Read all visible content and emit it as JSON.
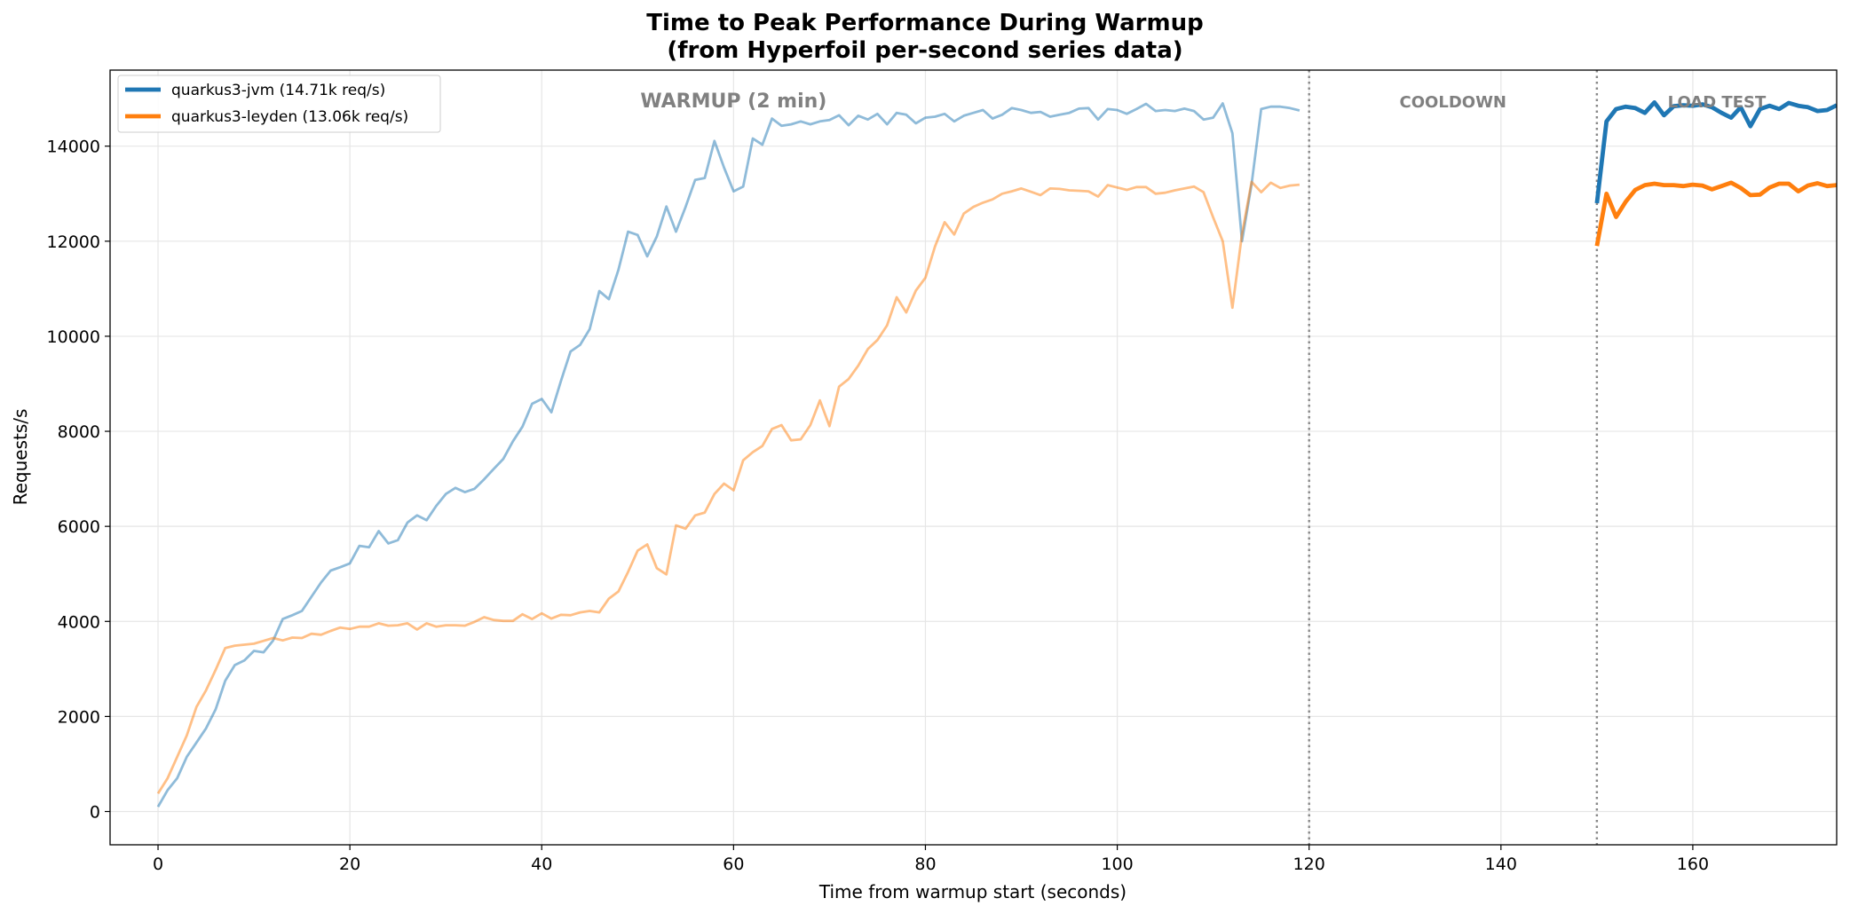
{
  "chart_data": {
    "type": "line",
    "title": "Time to Peak Performance During Warmup",
    "subtitle": "(from Hyperfoil per-second series data)",
    "xlabel": "Time from warmup start (seconds)",
    "ylabel": "Requests/s",
    "xlim": [
      -5,
      175
    ],
    "ylim": [
      -700,
      15600
    ],
    "xticks": [
      0,
      20,
      40,
      60,
      80,
      100,
      120,
      140,
      160
    ],
    "yticks": [
      0,
      2000,
      4000,
      6000,
      8000,
      10000,
      12000,
      14000
    ],
    "grid": true,
    "legend_position": "top-left",
    "phase_lines": [
      120,
      150
    ],
    "phase_labels": [
      {
        "text": "WARMUP (2 min)",
        "x": 60,
        "y": 14950,
        "size": "large"
      },
      {
        "text": "COOLDOWN",
        "x": 135,
        "y": 14950,
        "size": "small"
      },
      {
        "text": "LOAD TEST",
        "x": 162.5,
        "y": 14950,
        "size": "small"
      }
    ],
    "series": [
      {
        "name": "quarkus3-jvm (14.71k req/s)",
        "color": "#1f77b4",
        "warmup": {
          "x": [
            0,
            1,
            2,
            3,
            4,
            5,
            6,
            7,
            8,
            9,
            10,
            11,
            12,
            13,
            14,
            15,
            16,
            17,
            18,
            19,
            20,
            21,
            22,
            23,
            24,
            25,
            26,
            27,
            28,
            29,
            30,
            31,
            32,
            33,
            34,
            35,
            36,
            37,
            38,
            39,
            40,
            41,
            42,
            43,
            44,
            45,
            46,
            47,
            48,
            49,
            50,
            51,
            52,
            53,
            54,
            55,
            56,
            57,
            58,
            59,
            60,
            61,
            62,
            63,
            64,
            65,
            66,
            67,
            68,
            69,
            70,
            71,
            72,
            73,
            74,
            75,
            76,
            77,
            78,
            79,
            80,
            81,
            82,
            83,
            84,
            85,
            86,
            87,
            88,
            89,
            90,
            91,
            92,
            93,
            94,
            95,
            96,
            97,
            98,
            99,
            100,
            101,
            102,
            103,
            104,
            105,
            106,
            107,
            108,
            109,
            110,
            111,
            112,
            113,
            114,
            115,
            116,
            117,
            118,
            119
          ],
          "y": [
            100,
            450,
            700,
            1150,
            1450,
            1750,
            2150,
            2750,
            3080,
            3180,
            3380,
            3350,
            3600,
            4050,
            4130,
            4220,
            4520,
            4820,
            5070,
            5140,
            5220,
            5590,
            5560,
            5900,
            5640,
            5710,
            6080,
            6230,
            6130,
            6430,
            6680,
            6810,
            6720,
            6790,
            6990,
            7210,
            7420,
            7790,
            8100,
            8580,
            8680,
            8400,
            9060,
            9680,
            9820,
            10150,
            10950,
            10780,
            11400,
            12200,
            12130,
            11680,
            12100,
            12730,
            12200,
            12720,
            13290,
            13330,
            14110,
            13550,
            13050,
            13150,
            14160,
            14030,
            14580,
            14430,
            14460,
            14520,
            14460,
            14520,
            14550,
            14650,
            14440,
            14640,
            14560,
            14680,
            14460,
            14700,
            14660,
            14480,
            14600,
            14620,
            14680,
            14520,
            14640,
            14700,
            14760,
            14580,
            14660,
            14800,
            14760,
            14700,
            14720,
            14620,
            14660,
            14700,
            14790,
            14800,
            14560,
            14780,
            14760,
            14680,
            14780,
            14890,
            14740,
            14760,
            14740,
            14790,
            14740,
            14560,
            14600,
            14900,
            14270,
            12000,
            13200,
            14780,
            14830,
            14830,
            14800,
            14750
          ]
        },
        "load": {
          "x": [
            150,
            151,
            152,
            153,
            154,
            155,
            156,
            157,
            158,
            159,
            160,
            161,
            162,
            163,
            164,
            165,
            166,
            167,
            168,
            169,
            170,
            171,
            172,
            173,
            174,
            175
          ],
          "y": [
            12800,
            14520,
            14780,
            14830,
            14800,
            14700,
            14920,
            14650,
            14840,
            14860,
            14850,
            14880,
            14820,
            14700,
            14600,
            14820,
            14420,
            14780,
            14850,
            14780,
            14910,
            14850,
            14820,
            14740,
            14760,
            14860
          ]
        }
      },
      {
        "name": "quarkus3-leyden (13.06k req/s)",
        "color": "#ff7f0e",
        "warmup": {
          "x": [
            0,
            1,
            2,
            3,
            4,
            5,
            6,
            7,
            8,
            9,
            10,
            11,
            12,
            13,
            14,
            15,
            16,
            17,
            18,
            19,
            20,
            21,
            22,
            23,
            24,
            25,
            26,
            27,
            28,
            29,
            30,
            31,
            32,
            33,
            34,
            35,
            36,
            37,
            38,
            39,
            40,
            41,
            42,
            43,
            44,
            45,
            46,
            47,
            48,
            49,
            50,
            51,
            52,
            53,
            54,
            55,
            56,
            57,
            58,
            59,
            60,
            61,
            62,
            63,
            64,
            65,
            66,
            67,
            68,
            69,
            70,
            71,
            72,
            73,
            74,
            75,
            76,
            77,
            78,
            79,
            80,
            81,
            82,
            83,
            84,
            85,
            86,
            87,
            88,
            89,
            90,
            91,
            92,
            93,
            94,
            95,
            96,
            97,
            98,
            99,
            100,
            101,
            102,
            103,
            104,
            105,
            106,
            107,
            108,
            109,
            110,
            111,
            112,
            113,
            114,
            115,
            116,
            117,
            118,
            119
          ],
          "y": [
            380,
            700,
            1150,
            1600,
            2200,
            2550,
            2980,
            3440,
            3490,
            3510,
            3530,
            3590,
            3650,
            3600,
            3660,
            3650,
            3740,
            3720,
            3800,
            3870,
            3840,
            3890,
            3890,
            3960,
            3910,
            3920,
            3960,
            3830,
            3960,
            3890,
            3920,
            3920,
            3910,
            3990,
            4090,
            4030,
            4010,
            4010,
            4150,
            4050,
            4170,
            4060,
            4140,
            4130,
            4190,
            4220,
            4190,
            4480,
            4630,
            5040,
            5490,
            5620,
            5120,
            4990,
            6020,
            5950,
            6230,
            6290,
            6680,
            6900,
            6760,
            7390,
            7560,
            7690,
            8050,
            8130,
            7810,
            7830,
            8130,
            8650,
            8110,
            8940,
            9100,
            9380,
            9730,
            9920,
            10230,
            10820,
            10500,
            10960,
            11230,
            11890,
            12400,
            12140,
            12580,
            12720,
            12810,
            12880,
            13000,
            13050,
            13110,
            13040,
            12970,
            13110,
            13100,
            13070,
            13060,
            13050,
            12940,
            13180,
            13130,
            13080,
            13140,
            13140,
            13000,
            13020,
            13070,
            13110,
            13150,
            13030,
            12500,
            12000,
            10600,
            12150,
            13250,
            13030,
            13230,
            13120,
            13170,
            13190
          ]
        },
        "load": {
          "x": [
            150,
            151,
            152,
            153,
            154,
            155,
            156,
            157,
            158,
            159,
            160,
            161,
            162,
            163,
            164,
            165,
            166,
            167,
            168,
            169,
            170,
            171,
            172,
            173,
            174,
            175
          ],
          "y": [
            11900,
            13000,
            12510,
            12830,
            13080,
            13180,
            13210,
            13180,
            13180,
            13160,
            13190,
            13170,
            13090,
            13160,
            13230,
            13120,
            12970,
            12980,
            13130,
            13210,
            13210,
            13050,
            13170,
            13220,
            13160,
            13180
          ]
        }
      }
    ]
  }
}
